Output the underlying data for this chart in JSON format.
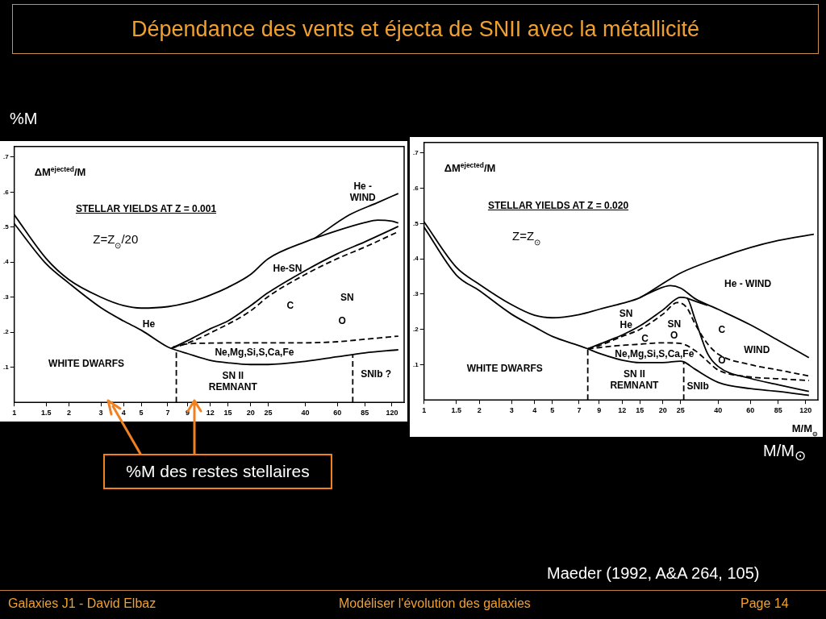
{
  "chart_data": [
    {
      "type": "line",
      "log": "x",
      "title": "STELLAR YIELDS AT Z = 0.001",
      "subtitle": "Z=Z$_{⊙}$/20",
      "ylabel": "ΔM$^{ejected}$/M",
      "xlim": [
        1,
        140
      ],
      "ylim": [
        0,
        0.73
      ],
      "xticks": [
        1,
        1.5,
        2,
        3,
        4,
        5,
        7,
        9,
        12,
        15,
        20,
        25,
        40,
        60,
        85,
        120
      ],
      "yticks": [
        {
          "value": 0.1,
          "label": ".1"
        },
        {
          "value": 0.2,
          "label": ".2"
        },
        {
          "value": 0.3,
          "label": ".3"
        },
        {
          "value": 0.4,
          "label": ".4"
        },
        {
          "value": 0.5,
          "label": ".5"
        },
        {
          "value": 0.6,
          "label": ".6"
        },
        {
          "value": 0.7,
          "label": ".7"
        }
      ],
      "grid": false,
      "legend": false,
      "marker": "none",
      "series": [
        {
          "color": "#000000",
          "line_style": "solid",
          "x": [
            1,
            1.5,
            2,
            3,
            4,
            5,
            7,
            9,
            12,
            15,
            20,
            25,
            40,
            60,
            85,
            100,
            120,
            130
          ],
          "values": [
            0.535,
            0.41,
            0.35,
            0.3,
            0.276,
            0.269,
            0.273,
            0.284,
            0.306,
            0.328,
            0.365,
            0.41,
            0.458,
            0.49,
            0.513,
            0.52,
            0.517,
            0.512
          ]
        },
        {
          "color": "#000000",
          "line_style": "solid",
          "x": [
            45,
            70,
            100,
            130
          ],
          "values": [
            0.468,
            0.535,
            0.57,
            0.596
          ]
        },
        {
          "color": "#000000",
          "line_style": "solid",
          "x": [
            1,
            1.5,
            2,
            3,
            4,
            5,
            7,
            7.3,
            9,
            12,
            15,
            20,
            25,
            40,
            60,
            85,
            130
          ],
          "values": [
            0.51,
            0.395,
            0.34,
            0.27,
            0.232,
            0.206,
            0.158,
            0.154,
            0.139,
            0.12,
            0.113,
            0.108,
            0.108,
            0.117,
            0.13,
            0.141,
            0.15
          ]
        },
        {
          "color": "#000000",
          "line_style": "solid",
          "x": [
            7.3,
            9,
            12,
            15,
            20,
            25,
            40,
            60,
            85,
            130
          ],
          "values": [
            0.154,
            0.176,
            0.21,
            0.232,
            0.276,
            0.313,
            0.376,
            0.424,
            0.458,
            0.502
          ]
        },
        {
          "color": "#000000",
          "line_style": "dashed",
          "x": [
            7.3,
            9,
            12,
            20,
            25,
            40,
            60,
            85,
            130
          ],
          "values": [
            0.154,
            0.169,
            0.198,
            0.261,
            0.302,
            0.365,
            0.41,
            0.443,
            0.487
          ]
        },
        {
          "color": "#000000",
          "line_style": "dashed",
          "x": [
            7.5,
            9,
            12,
            20,
            40,
            60,
            85,
            130
          ],
          "values": [
            0.158,
            0.167,
            0.169,
            0.17,
            0.17,
            0.173,
            0.18,
            0.189
          ]
        },
        {
          "color": "#000000",
          "line_style": "dashed",
          "x": [
            7.8,
            7.8
          ],
          "values": [
            0,
            0.15
          ]
        },
        {
          "color": "#000000",
          "line_style": "dashed",
          "x": [
            73,
            73
          ],
          "values": [
            0,
            0.135
          ]
        }
      ],
      "annotations": [
        "Dépendance des vents et éjecta de SNII avec la métallicité",
        "%M",
        "%M des restes stellaires",
        "Galaxies J1 - David Elbaz",
        "Modéliser l'évolution des galaxies",
        "Page 14",
        "He -\nWIND",
        "He-SN",
        "C",
        "SN",
        "O",
        "He",
        "Ne,Mg,Si,S,Ca,Fe",
        "WHITE DWARFS",
        "SN II\nREMNANT",
        "SNIb ?"
      ]
    },
    {
      "type": "line",
      "log": "x",
      "title": "STELLAR YIELDS AT Z = 0.020",
      "subtitle": "Z=Z$_{⊙}$",
      "ylabel": "ΔM$^{ejected}$/M",
      "xlabel": "M/M$_{⊙}$",
      "xlim": [
        1,
        140
      ],
      "ylim": [
        0,
        0.73
      ],
      "xticks": [
        1,
        1.5,
        2,
        3,
        4,
        5,
        7,
        9,
        12,
        15,
        20,
        25,
        40,
        60,
        85,
        120
      ],
      "yticks": [
        {
          "value": 0.1,
          "label": ".1"
        },
        {
          "value": 0.2,
          "label": ".2"
        },
        {
          "value": 0.3,
          "label": ".3"
        },
        {
          "value": 0.4,
          "label": ".4"
        },
        {
          "value": 0.5,
          "label": ".5"
        },
        {
          "value": 0.6,
          "label": ".6"
        },
        {
          "value": 0.7,
          "label": ".7"
        }
      ],
      "grid": false,
      "legend": false,
      "marker": "none",
      "series": [
        {
          "color": "#000000",
          "line_style": "solid",
          "x": [
            1,
            1.5,
            2,
            3,
            4,
            5,
            7,
            9,
            12,
            15,
            20,
            25,
            40,
            60,
            85,
            133
          ],
          "values": [
            0.505,
            0.376,
            0.328,
            0.27,
            0.24,
            0.233,
            0.242,
            0.257,
            0.274,
            0.29,
            0.33,
            0.36,
            0.402,
            0.432,
            0.452,
            0.47
          ]
        },
        {
          "color": "#000000",
          "line_style": "solid",
          "x": [
            15,
            18,
            22,
            25,
            30,
            40,
            60,
            85,
            125
          ],
          "values": [
            0.29,
            0.31,
            0.324,
            0.317,
            0.287,
            0.257,
            0.213,
            0.169,
            0.12
          ]
        },
        {
          "color": "#000000",
          "line_style": "solid",
          "x": [
            1,
            1.5,
            2,
            3,
            4,
            5,
            7,
            7.8,
            9,
            12,
            15,
            20,
            25,
            26,
            30,
            40,
            60,
            85,
            125
          ],
          "values": [
            0.49,
            0.354,
            0.31,
            0.243,
            0.207,
            0.18,
            0.154,
            0.145,
            0.132,
            0.113,
            0.106,
            0.106,
            0.11,
            0.108,
            0.087,
            0.05,
            0.032,
            0.024,
            0.013
          ]
        },
        {
          "color": "#000000",
          "line_style": "solid",
          "x": [
            7.8,
            9,
            12,
            15,
            20,
            25,
            27,
            30,
            35,
            40,
            60,
            85,
            125
          ],
          "values": [
            0.145,
            0.158,
            0.184,
            0.21,
            0.255,
            0.291,
            0.289,
            0.228,
            0.132,
            0.095,
            0.061,
            0.043,
            0.024
          ]
        },
        {
          "color": "#000000",
          "line_style": "solid",
          "x": [
            27,
            30,
            35
          ],
          "values": [
            0.289,
            0.28,
            0.268
          ]
        },
        {
          "color": "#000000",
          "line_style": "dashed",
          "x": [
            7.8,
            9,
            12,
            15,
            20,
            24,
            27,
            30,
            35,
            40,
            60,
            85,
            125
          ],
          "values": [
            0.145,
            0.154,
            0.18,
            0.2,
            0.243,
            0.276,
            0.262,
            0.215,
            0.16,
            0.13,
            0.1,
            0.085,
            0.068
          ]
        },
        {
          "color": "#000000",
          "line_style": "dashed",
          "x": [
            7.8,
            12,
            15,
            20,
            25,
            30,
            35,
            40,
            60,
            85,
            125
          ],
          "values": [
            0.145,
            0.155,
            0.158,
            0.162,
            0.16,
            0.14,
            0.11,
            0.085,
            0.065,
            0.06,
            0.055
          ]
        },
        {
          "color": "#000000",
          "line_style": "dashed",
          "x": [
            7.8,
            7.8
          ],
          "values": [
            0,
            0.145
          ]
        },
        {
          "color": "#000000",
          "line_style": "dashed",
          "x": [
            26,
            26
          ],
          "values": [
            0,
            0.108
          ]
        }
      ],
      "annotations": [
        "M/M$_{⊙}$",
        "Maeder (1992, A&A 264, 105)",
        "He - WIND",
        "SN\nHe",
        "SN\nO",
        "C",
        "Ne,Mg,Si,S,Ca,Fe",
        "C",
        "WIND",
        "O",
        "WHITE DWARFS",
        "SN II\nREMNANT",
        "SNIb"
      ]
    }
  ]
}
